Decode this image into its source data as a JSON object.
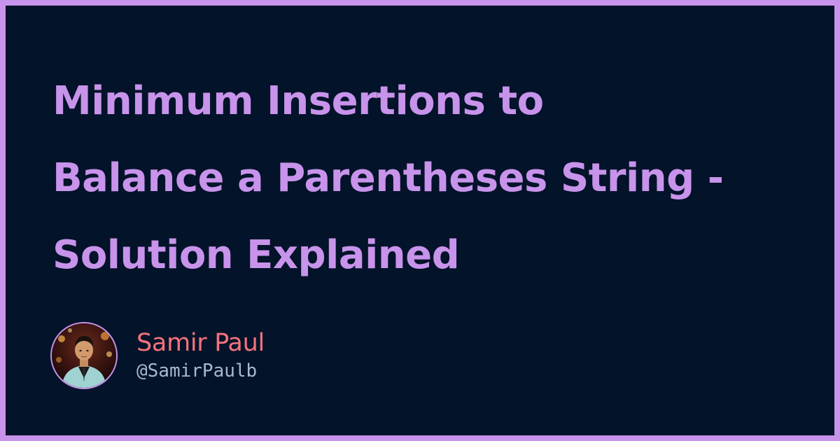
{
  "post": {
    "title": "Minimum Insertions to Balance a Parentheses String - Solution Explained"
  },
  "author": {
    "name": "Samir Paul",
    "handle": "@SamirPaulb",
    "avatar_icon": "avatar-photo"
  },
  "colors": {
    "frame": "#c893ea",
    "background": "#03132a",
    "title": "#c893ea",
    "author_name": "#f4737c",
    "author_handle": "#a8b8cf"
  }
}
